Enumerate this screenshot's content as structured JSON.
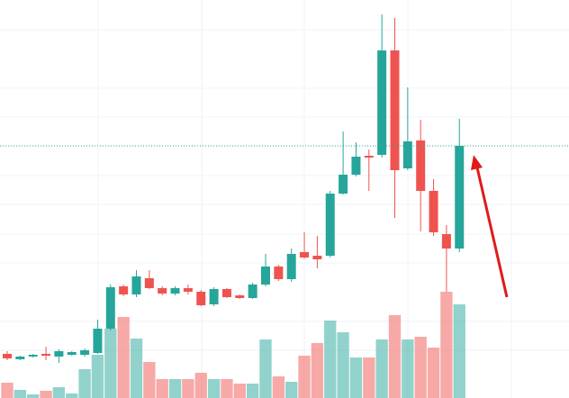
{
  "chart_data": {
    "type": "candlestick",
    "open": [
      49,
      43,
      46,
      49,
      46,
      48,
      48,
      50,
      77,
      124,
      115,
      133,
      122,
      116,
      122,
      118,
      104,
      121,
      114,
      111,
      126,
      146,
      132,
      162,
      158,
      158,
      227,
      248,
      269,
      270,
      386,
      255,
      286,
      230,
      182,
      166
    ],
    "high": [
      52,
      47,
      49,
      57,
      54,
      52,
      55,
      87,
      126,
      126,
      142,
      142,
      124,
      124,
      126,
      120,
      123,
      122,
      115,
      128,
      160,
      148,
      166,
      184,
      180,
      230,
      296,
      284,
      276,
      426,
      422,
      345,
      309,
      243,
      192,
      310
    ],
    "low": [
      42,
      42,
      45,
      42,
      39,
      47,
      46,
      49,
      75,
      113,
      112,
      121,
      114,
      114,
      115,
      102,
      102,
      111,
      110,
      110,
      124,
      130,
      129,
      155,
      144,
      156,
      226,
      246,
      230,
      267,
      200,
      253,
      185,
      180,
      118,
      162
    ],
    "close": [
      44,
      46,
      48,
      47,
      52,
      51,
      53,
      77,
      123,
      115,
      135,
      122,
      116,
      122,
      118,
      103,
      121,
      112,
      111,
      126,
      146,
      132,
      160,
      156,
      154,
      227,
      248,
      268,
      267,
      386,
      253,
      285,
      230,
      184,
      166,
      280
    ],
    "volume": [
      17,
      9,
      4,
      8,
      12,
      5,
      32,
      48,
      77,
      90,
      66,
      40,
      21,
      21,
      21,
      28,
      21,
      21,
      16,
      16,
      65,
      24,
      18,
      47,
      61,
      86,
      73,
      45,
      45,
      65,
      92,
      65,
      68,
      56,
      118,
      104
    ],
    "up_color": "#26a69a",
    "down_color": "#ef5350",
    "ylim": [
      0,
      442
    ],
    "volume_lim": [
      0,
      442
    ],
    "price_line": true
  }
}
